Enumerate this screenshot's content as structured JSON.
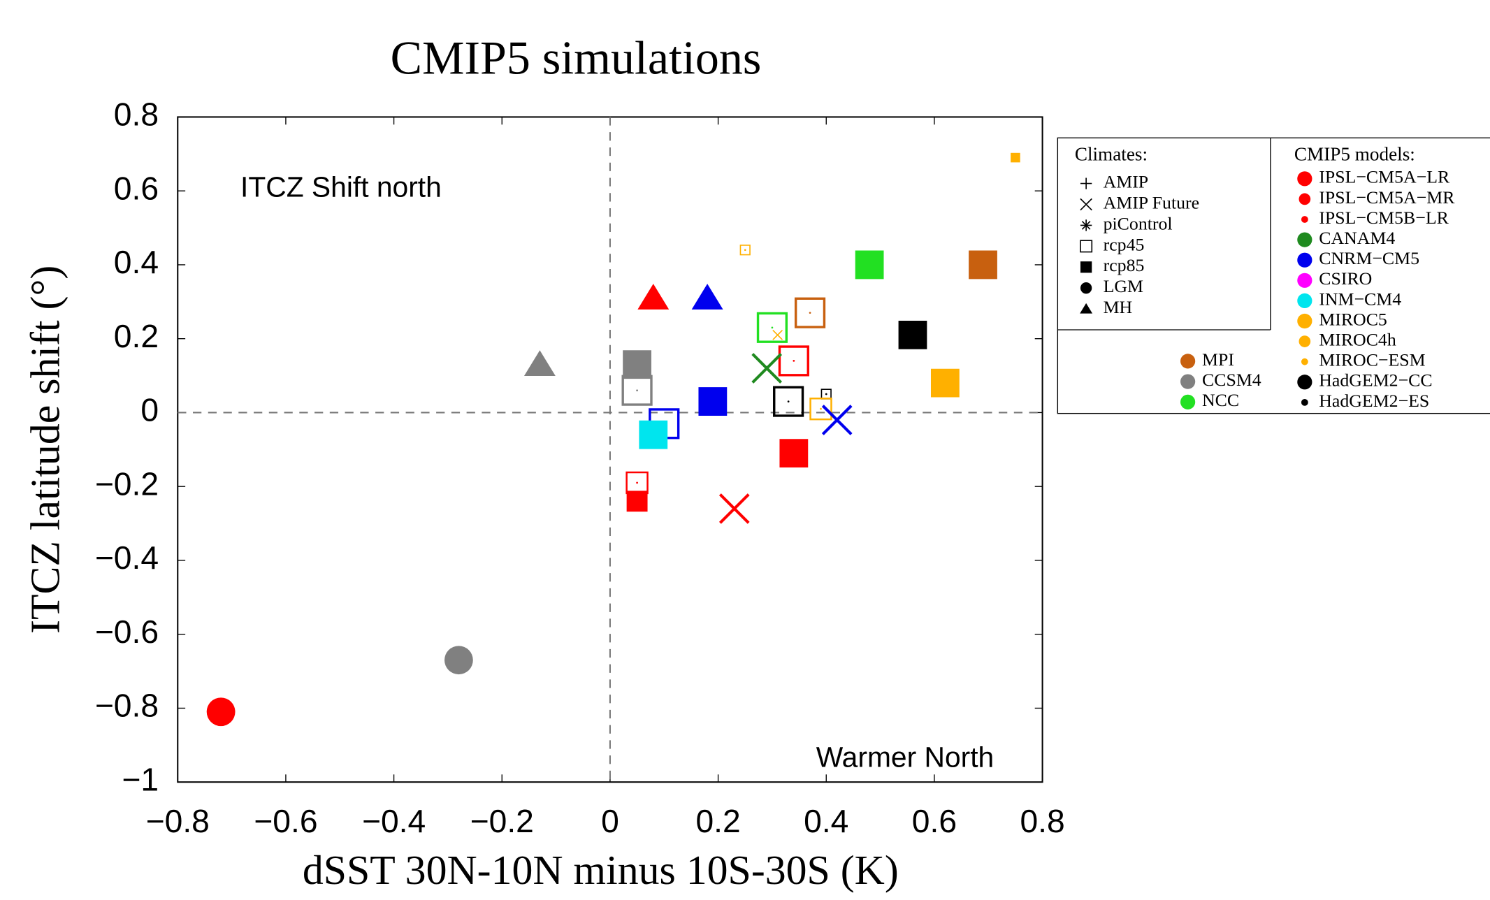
{
  "chart_data": {
    "type": "scatter",
    "title": "CMIP5 simulations",
    "x_label": "dSST 30N-10N minus 10S-30S (K)",
    "y_label": "ITCZ latitude shift (°)",
    "annotations": [
      "ITCZ Shift north",
      "Warmer North"
    ],
    "xlim": [
      -0.8,
      0.8
    ],
    "xticks": [
      {
        "value": -0.8,
        "label": "−0.8"
      },
      {
        "value": -0.6,
        "label": "−0.6"
      },
      {
        "value": -0.4,
        "label": "−0.4"
      },
      {
        "value": -0.2,
        "label": "−0.2"
      },
      0,
      0.2,
      0.4,
      0.6,
      0.8
    ],
    "ylim": [
      -1,
      0.8
    ],
    "yticks": [
      {
        "value": -1,
        "label": "−1"
      },
      {
        "value": -0.8,
        "label": "−0.8"
      },
      {
        "value": -0.6,
        "label": "−0.6"
      },
      {
        "value": -0.4,
        "label": "−0.4"
      },
      {
        "value": -0.2,
        "label": "−0.2"
      },
      0,
      0.2,
      0.4,
      0.6,
      0.8
    ],
    "grid": false,
    "zero_lines": true,
    "climates_title": "Climates:",
    "climates": [
      {
        "name": "AMIP",
        "marker": "plus"
      },
      {
        "name": "AMIP Future",
        "marker": "cross"
      },
      {
        "name": "piControl",
        "marker": "asterisk"
      },
      {
        "name": "rcp45",
        "marker": "open-square"
      },
      {
        "name": "rcp85",
        "marker": "square"
      },
      {
        "name": "LGM",
        "marker": "circle"
      },
      {
        "name": "MH",
        "marker": "triangle"
      }
    ],
    "models_title": "CMIP5 models:",
    "models": [
      {
        "name": "IPSL−CM5A−LR",
        "color": "#ff0000",
        "size": "large"
      },
      {
        "name": "IPSL−CM5A−MR",
        "color": "#ff0000",
        "size": "medium"
      },
      {
        "name": "IPSL−CM5B−LR",
        "color": "#ff0000",
        "size": "small"
      },
      {
        "name": "CANAM4",
        "color": "#1f8a1f",
        "size": "large"
      },
      {
        "name": "CNRM−CM5",
        "color": "#0000ee",
        "size": "large"
      },
      {
        "name": "CSIRO",
        "color": "#ff00ff",
        "size": "large"
      },
      {
        "name": "INM−CM4",
        "color": "#00e5ee",
        "size": "large"
      },
      {
        "name": "MIROC5",
        "color": "#ffb000",
        "size": "large"
      },
      {
        "name": "MIROC4h",
        "color": "#ffb000",
        "size": "medium"
      },
      {
        "name": "MIROC−ESM",
        "color": "#ffb000",
        "size": "small"
      },
      {
        "name": "HadGEM2−CC",
        "color": "#000000",
        "size": "large"
      },
      {
        "name": "HadGEM2−ES",
        "color": "#000000",
        "size": "small"
      },
      {
        "name": "MPI",
        "color": "#c8600f",
        "size": "large"
      },
      {
        "name": "CCSM4",
        "color": "#808080",
        "size": "large"
      },
      {
        "name": "NCC",
        "color": "#22e022",
        "size": "large"
      }
    ],
    "points": [
      {
        "model": "IPSL−CM5A−LR",
        "climate": "LGM",
        "x": -0.72,
        "y": -0.81
      },
      {
        "model": "CCSM4",
        "climate": "LGM",
        "x": -0.28,
        "y": -0.67
      },
      {
        "model": "CCSM4",
        "climate": "MH",
        "x": -0.13,
        "y": 0.13
      },
      {
        "model": "IPSL−CM5A−LR",
        "climate": "MH",
        "x": 0.08,
        "y": 0.31
      },
      {
        "model": "CNRM−CM5",
        "climate": "MH",
        "x": 0.18,
        "y": 0.31
      },
      {
        "model": "CCSM4",
        "climate": "rcp85",
        "x": 0.05,
        "y": 0.13
      },
      {
        "model": "CCSM4",
        "climate": "rcp45",
        "x": 0.05,
        "y": 0.06
      },
      {
        "model": "CNRM−CM5",
        "climate": "rcp85",
        "x": 0.19,
        "y": 0.03
      },
      {
        "model": "CNRM−CM5",
        "climate": "rcp45",
        "x": 0.1,
        "y": -0.03
      },
      {
        "model": "INM−CM4",
        "climate": "rcp85",
        "x": 0.08,
        "y": -0.06
      },
      {
        "model": "IPSL−CM5A−MR",
        "climate": "rcp45",
        "x": 0.05,
        "y": -0.19
      },
      {
        "model": "IPSL−CM5A−MR",
        "climate": "rcp85",
        "x": 0.05,
        "y": -0.24
      },
      {
        "model": "IPSL−CM5A−LR",
        "climate": "AMIP Future",
        "x": 0.23,
        "y": -0.26
      },
      {
        "model": "IPSL−CM5A−LR",
        "climate": "rcp85",
        "x": 0.34,
        "y": -0.11
      },
      {
        "model": "IPSL−CM5A−LR",
        "climate": "rcp45",
        "x": 0.34,
        "y": 0.14
      },
      {
        "model": "CANAM4",
        "climate": "AMIP Future",
        "x": 0.29,
        "y": 0.12
      },
      {
        "model": "NCC",
        "climate": "rcp45",
        "x": 0.3,
        "y": 0.23
      },
      {
        "model": "MIROC−ESM",
        "climate": "AMIP Future",
        "x": 0.31,
        "y": 0.21
      },
      {
        "model": "MPI",
        "climate": "rcp45",
        "x": 0.37,
        "y": 0.27
      },
      {
        "model": "NCC",
        "climate": "rcp85",
        "x": 0.48,
        "y": 0.4
      },
      {
        "model": "MPI",
        "climate": "rcp85",
        "x": 0.69,
        "y": 0.4
      },
      {
        "model": "HadGEM2−CC",
        "climate": "rcp85",
        "x": 0.56,
        "y": 0.21
      },
      {
        "model": "MIROC5",
        "climate": "rcp85",
        "x": 0.62,
        "y": 0.08
      },
      {
        "model": "HadGEM2−CC",
        "climate": "rcp45",
        "x": 0.33,
        "y": 0.03
      },
      {
        "model": "HadGEM2−ES",
        "climate": "rcp45",
        "x": 0.4,
        "y": 0.05
      },
      {
        "model": "MIROC4h",
        "climate": "rcp45",
        "x": 0.39,
        "y": 0.01
      },
      {
        "model": "CNRM−CM5",
        "climate": "AMIP Future",
        "x": 0.42,
        "y": -0.02
      },
      {
        "model": "MIROC−ESM",
        "climate": "rcp45",
        "x": 0.25,
        "y": 0.44
      },
      {
        "model": "MIROC−ESM",
        "climate": "rcp85",
        "x": 0.75,
        "y": 0.69
      }
    ]
  }
}
